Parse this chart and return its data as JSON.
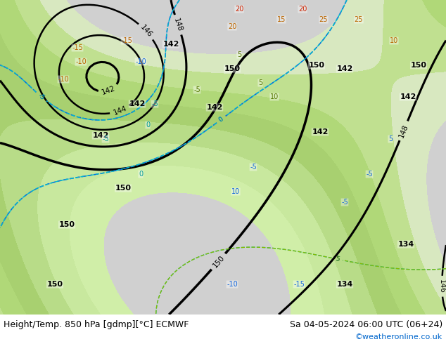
{
  "title_left": "Height/Temp. 850 hPa [gdmp][°C] ECMWF",
  "title_right": "Sa 04-05-2024 06:00 UTC (06+24)",
  "credit": "©weatheronline.co.uk",
  "bg_color": "#ffffff",
  "bottom_text_color": "#000000",
  "credit_color": "#0066cc",
  "fig_width": 6.34,
  "fig_height": 4.9,
  "dpi": 100,
  "text_font_size": 9.0,
  "credit_font_size": 8.0,
  "map_bg_color": "#e8e8e8",
  "land_green_light": "#c8e8a0",
  "land_green_mid": "#a8d880",
  "sea_gray": "#d0d0d0"
}
